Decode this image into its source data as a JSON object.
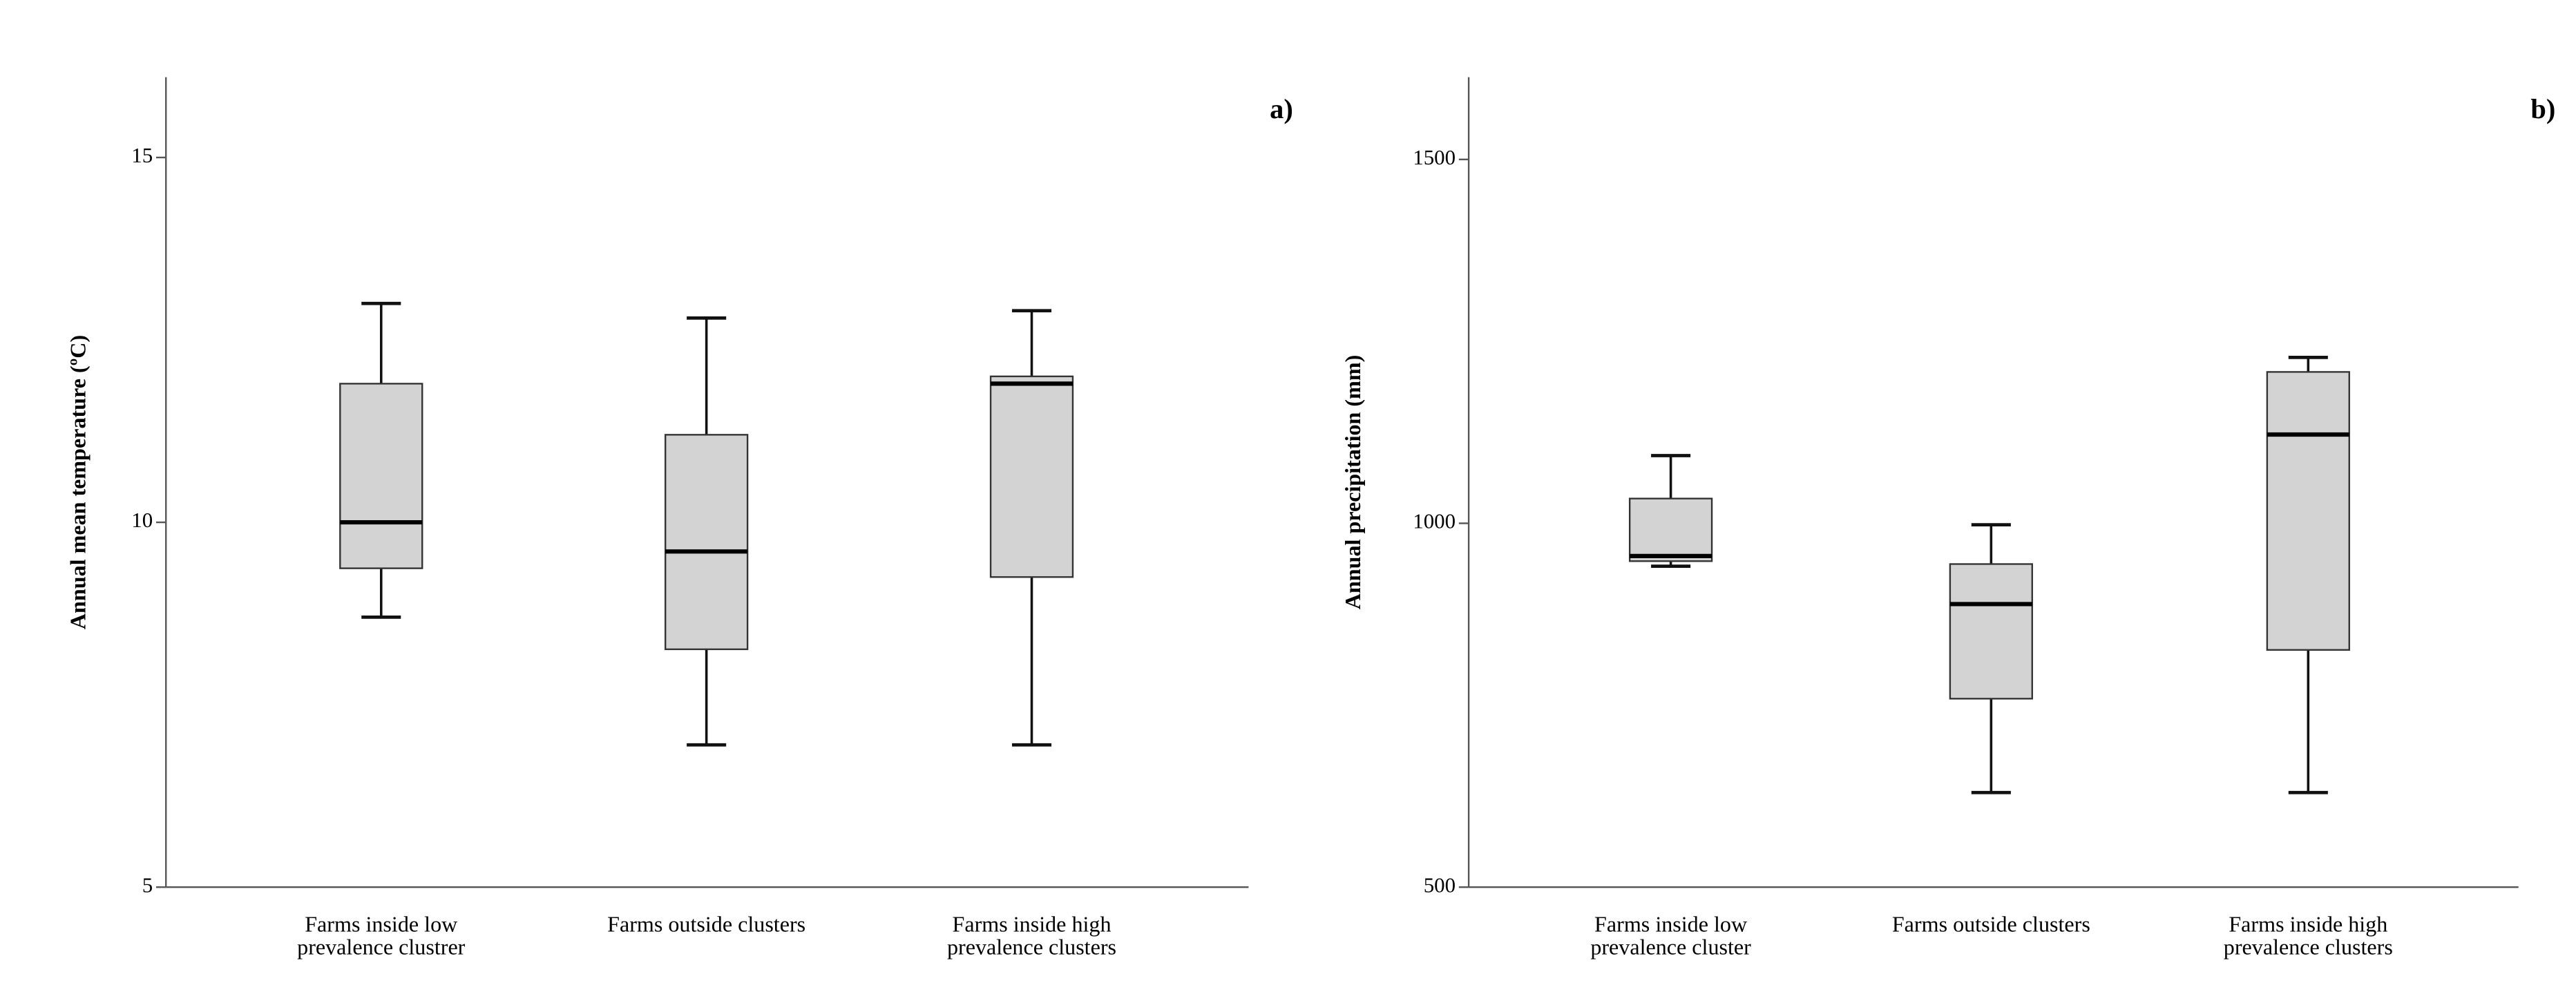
{
  "chart_data": [
    {
      "type": "box",
      "panel_label": "a)",
      "ylabel": "Annual mean temperature (ºC)",
      "categories": [
        [
          "Farms inside low",
          "prevalence clustrer"
        ],
        [
          "Farms outside clusters"
        ],
        [
          "Farms inside high",
          "prevalence clusters"
        ]
      ],
      "boxes": [
        {
          "min": 8.7,
          "q1": 9.37,
          "median": 10.0,
          "q3": 11.9,
          "max": 13.0
        },
        {
          "min": 6.95,
          "q1": 8.26,
          "median": 9.6,
          "q3": 11.2,
          "max": 12.8
        },
        {
          "min": 6.95,
          "q1": 9.25,
          "median": 11.9,
          "q3": 12.0,
          "max": 12.9
        }
      ],
      "color": "#d3d3d3",
      "ylim": [
        5,
        16.1
      ],
      "yticks": [
        5,
        10,
        15
      ]
    },
    {
      "type": "box",
      "panel_label": "b)",
      "ylabel": "Annual precipitation (mm)",
      "categories": [
        [
          "Farms inside low",
          "prevalence cluster"
        ],
        [
          "Farms outside clusters"
        ],
        [
          "Farms inside high",
          "prevalence clusters"
        ]
      ],
      "boxes": [
        {
          "min": 941,
          "q1": 948,
          "median": 955,
          "q3": 1034,
          "max": 1093
        },
        {
          "min": 630,
          "q1": 759,
          "median": 889,
          "q3": 944,
          "max": 998
        },
        {
          "min": 630,
          "q1": 826,
          "median": 1122,
          "q3": 1208,
          "max": 1228
        }
      ],
      "color": "#d3d3d3",
      "ylim": [
        500,
        1613
      ],
      "yticks": [
        500,
        1000,
        1500
      ]
    }
  ]
}
